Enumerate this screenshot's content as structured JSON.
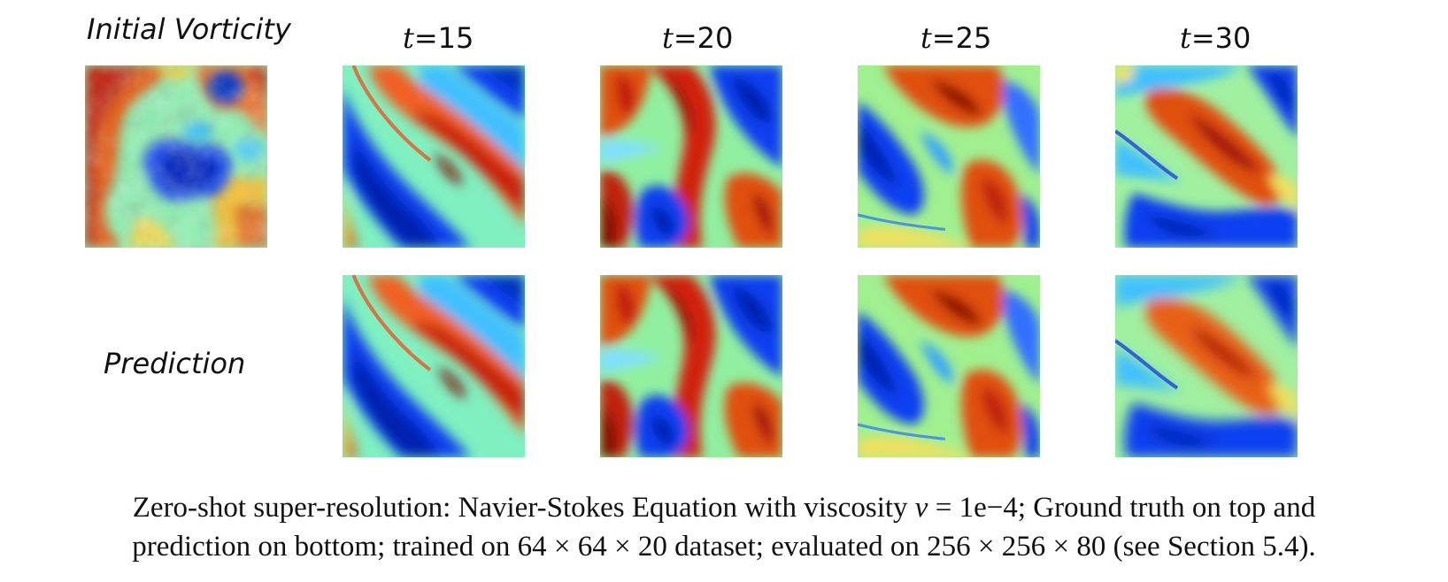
{
  "figure": {
    "row_labels": {
      "initial": "Initial Vorticity",
      "prediction": "Prediction"
    },
    "time_labels": [
      {
        "var": "t",
        "value": "=15"
      },
      {
        "var": "t",
        "value": "=20"
      },
      {
        "var": "t",
        "value": "=25"
      },
      {
        "var": "t",
        "value": "=30"
      }
    ],
    "colormap": [
      "#00008f",
      "#0040ff",
      "#00c0ff",
      "#7effb0",
      "#ffff40",
      "#ff8000",
      "#d01000",
      "#800000"
    ]
  },
  "caption": {
    "line1_a": "Zero-shot super-resolution: Navier-Stokes Equation with viscosity ",
    "nu": "ν",
    "eq": " = 1e−4",
    "line1_b": "; Ground truth on top and",
    "line2_a": "prediction on bottom; trained on ",
    "dims1": "64 × 64 × 20",
    "line2_b": " dataset; evaluated on ",
    "dims2": "256 × 256 × 80",
    "line2_c": " (see Section 5.4)."
  }
}
